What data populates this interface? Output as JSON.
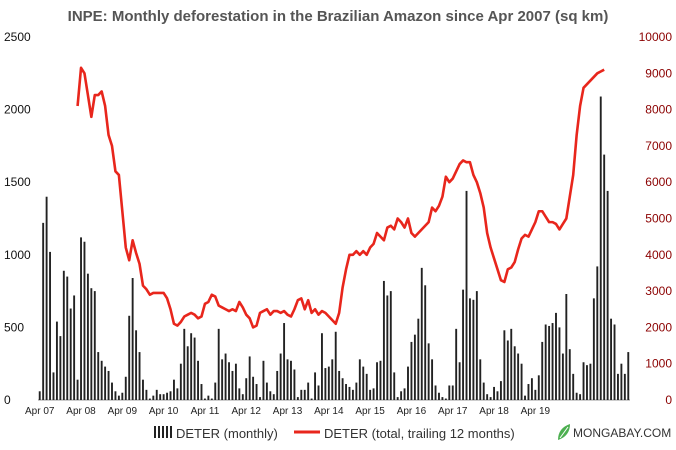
{
  "chart_data": {
    "type": "bar",
    "title": "INPE: Monthly deforestation in the Brazilian Amazon since Apr 2007 (sq km)",
    "xlabel": "",
    "ylabel": "",
    "ylim": [
      0,
      2500
    ],
    "y2lim": [
      0,
      10000
    ],
    "ticks_left": [
      "0",
      "500",
      "1000",
      "1500",
      "2000",
      "2500"
    ],
    "ticks_right": [
      "0",
      "1000",
      "2000",
      "3000",
      "4000",
      "5000",
      "6000",
      "7000",
      "8000",
      "9000",
      "10000"
    ],
    "x_labels": [
      "Apr 07",
      "Apr 08",
      "Apr 09",
      "Apr 10",
      "Apr 11",
      "Apr 12",
      "Apr 13",
      "Apr 14",
      "Apr 15",
      "Apr 16",
      "Apr 17",
      "Apr 18",
      "Apr 19"
    ],
    "months_start": "Apr 2007",
    "series": [
      {
        "name": "DETER (monthly)",
        "axis": "left",
        "color": "#222222",
        "values": [
          60,
          1220,
          1400,
          1020,
          190,
          540,
          440,
          890,
          850,
          630,
          720,
          140,
          1120,
          1090,
          870,
          770,
          750,
          330,
          270,
          230,
          200,
          120,
          60,
          30,
          50,
          160,
          580,
          840,
          480,
          330,
          140,
          70,
          10,
          30,
          70,
          40,
          40,
          50,
          60,
          140,
          80,
          250,
          490,
          370,
          460,
          430,
          270,
          110,
          10,
          30,
          10,
          120,
          490,
          280,
          320,
          260,
          200,
          250,
          80,
          40,
          150,
          300,
          160,
          110,
          20,
          270,
          120,
          60,
          40,
          200,
          320,
          530,
          280,
          270,
          210,
          20,
          70,
          70,
          120,
          10,
          190,
          100,
          460,
          220,
          230,
          280,
          470,
          200,
          150,
          110,
          90,
          70,
          120,
          280,
          230,
          180,
          70,
          80,
          260,
          270,
          820,
          720,
          750,
          190,
          20,
          60,
          80,
          230,
          400,
          450,
          560,
          910,
          790,
          390,
          280,
          100,
          50,
          20,
          10,
          100,
          100,
          490,
          260,
          760,
          1440,
          700,
          690,
          750,
          280,
          120,
          40,
          20,
          90,
          60,
          130,
          480,
          410,
          490,
          370,
          320,
          250,
          30,
          110,
          150,
          70,
          170,
          400,
          520,
          510,
          530,
          600,
          500,
          320,
          730,
          350,
          180,
          50,
          40,
          260,
          240,
          250,
          700,
          920,
          2090,
          1690,
          1440,
          560,
          520,
          180,
          250,
          180,
          330
        ]
      },
      {
        "name": "DETER (total, trailing 12 months)",
        "axis": "right",
        "color": "#e8261c",
        "x_start_index": 11,
        "values": [
          8100,
          9150,
          9000,
          8400,
          7800,
          8400,
          8400,
          8500,
          8100,
          7300,
          7000,
          6300,
          6200,
          5200,
          4200,
          3850,
          4400,
          4050,
          3750,
          3150,
          3050,
          2900,
          2950,
          2950,
          2950,
          2950,
          2800,
          2500,
          2100,
          2050,
          2150,
          2300,
          2350,
          2400,
          2350,
          2250,
          2300,
          2650,
          2700,
          2900,
          2850,
          2600,
          2550,
          2500,
          2450,
          2500,
          2450,
          2700,
          2550,
          2350,
          2250,
          2000,
          2050,
          2400,
          2450,
          2500,
          2350,
          2450,
          2450,
          2400,
          2450,
          2350,
          2300,
          2500,
          2750,
          2800,
          2500,
          2750,
          2400,
          2500,
          2350,
          2450,
          2400,
          2300,
          2200,
          2100,
          2400,
          3100,
          3600,
          4000,
          4000,
          4100,
          4000,
          4100,
          4000,
          4200,
          4300,
          4600,
          4500,
          4400,
          4750,
          4800,
          4700,
          5000,
          4900,
          4750,
          5000,
          4600,
          4500,
          4600,
          4700,
          4800,
          4900,
          5300,
          5200,
          5350,
          5600,
          6150,
          6000,
          6100,
          6300,
          6500,
          6600,
          6550,
          6550,
          6200,
          6000,
          5700,
          5300,
          4600,
          4200,
          3900,
          3600,
          3300,
          3250,
          3600,
          3650,
          3800,
          4150,
          4450,
          4550,
          4500,
          4700,
          4900,
          5200,
          5200,
          5050,
          4900,
          4900,
          4850,
          4700,
          4850,
          5000,
          5600,
          6200,
          7300,
          8100,
          8600,
          8700,
          8800,
          8900,
          9000,
          9050,
          9100
        ]
      }
    ],
    "legend": [
      {
        "label": "DETER (monthly)",
        "kind": "bar"
      },
      {
        "label": "DETER (total, trailing 12 months)",
        "kind": "line"
      }
    ],
    "legend_placement": "bottom",
    "grid": false
  },
  "branding": {
    "text": "MONGABAY.COM",
    "logo_color": "#4caf50"
  }
}
